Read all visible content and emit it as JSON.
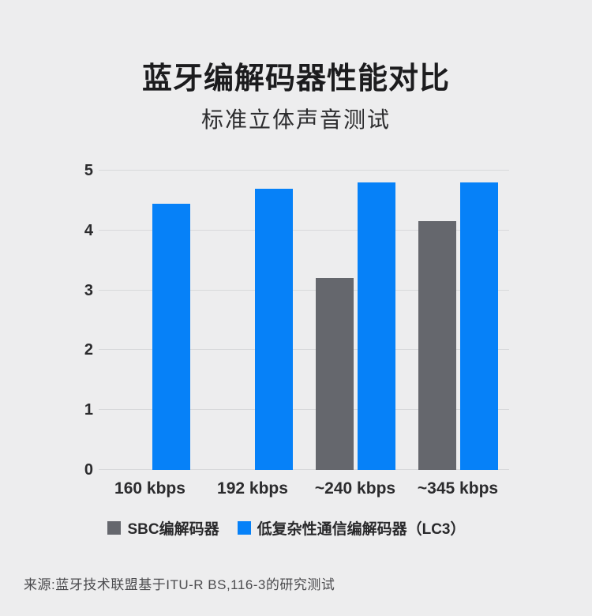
{
  "page": {
    "background": "#ededee"
  },
  "chart_data": {
    "type": "bar",
    "title": "蓝牙编解码器性能对比",
    "subtitle": "标准立体声音测试",
    "categories": [
      "160 kbps",
      "192 kbps",
      "~240 kbps",
      "~345 kbps"
    ],
    "series": [
      {
        "name": "SBC编解码器",
        "color": "#65676d",
        "values": [
          null,
          null,
          3.2,
          4.15
        ]
      },
      {
        "name": "低复杂性通信编解码器（LC3）",
        "color": "#0681f8",
        "values": [
          4.45,
          4.7,
          4.8,
          4.8
        ]
      }
    ],
    "xlabel": "",
    "ylabel": "",
    "ylim": [
      0,
      5
    ],
    "yticks": [
      0,
      1,
      2,
      3,
      4,
      5
    ],
    "grid": true,
    "grid_color": "#d8d9db",
    "axis_text_color": "#2b2b2d",
    "legend_position": "bottom",
    "source": "来源:蓝牙技术联盟基于ITU-R BS,116-3的研究测试"
  }
}
